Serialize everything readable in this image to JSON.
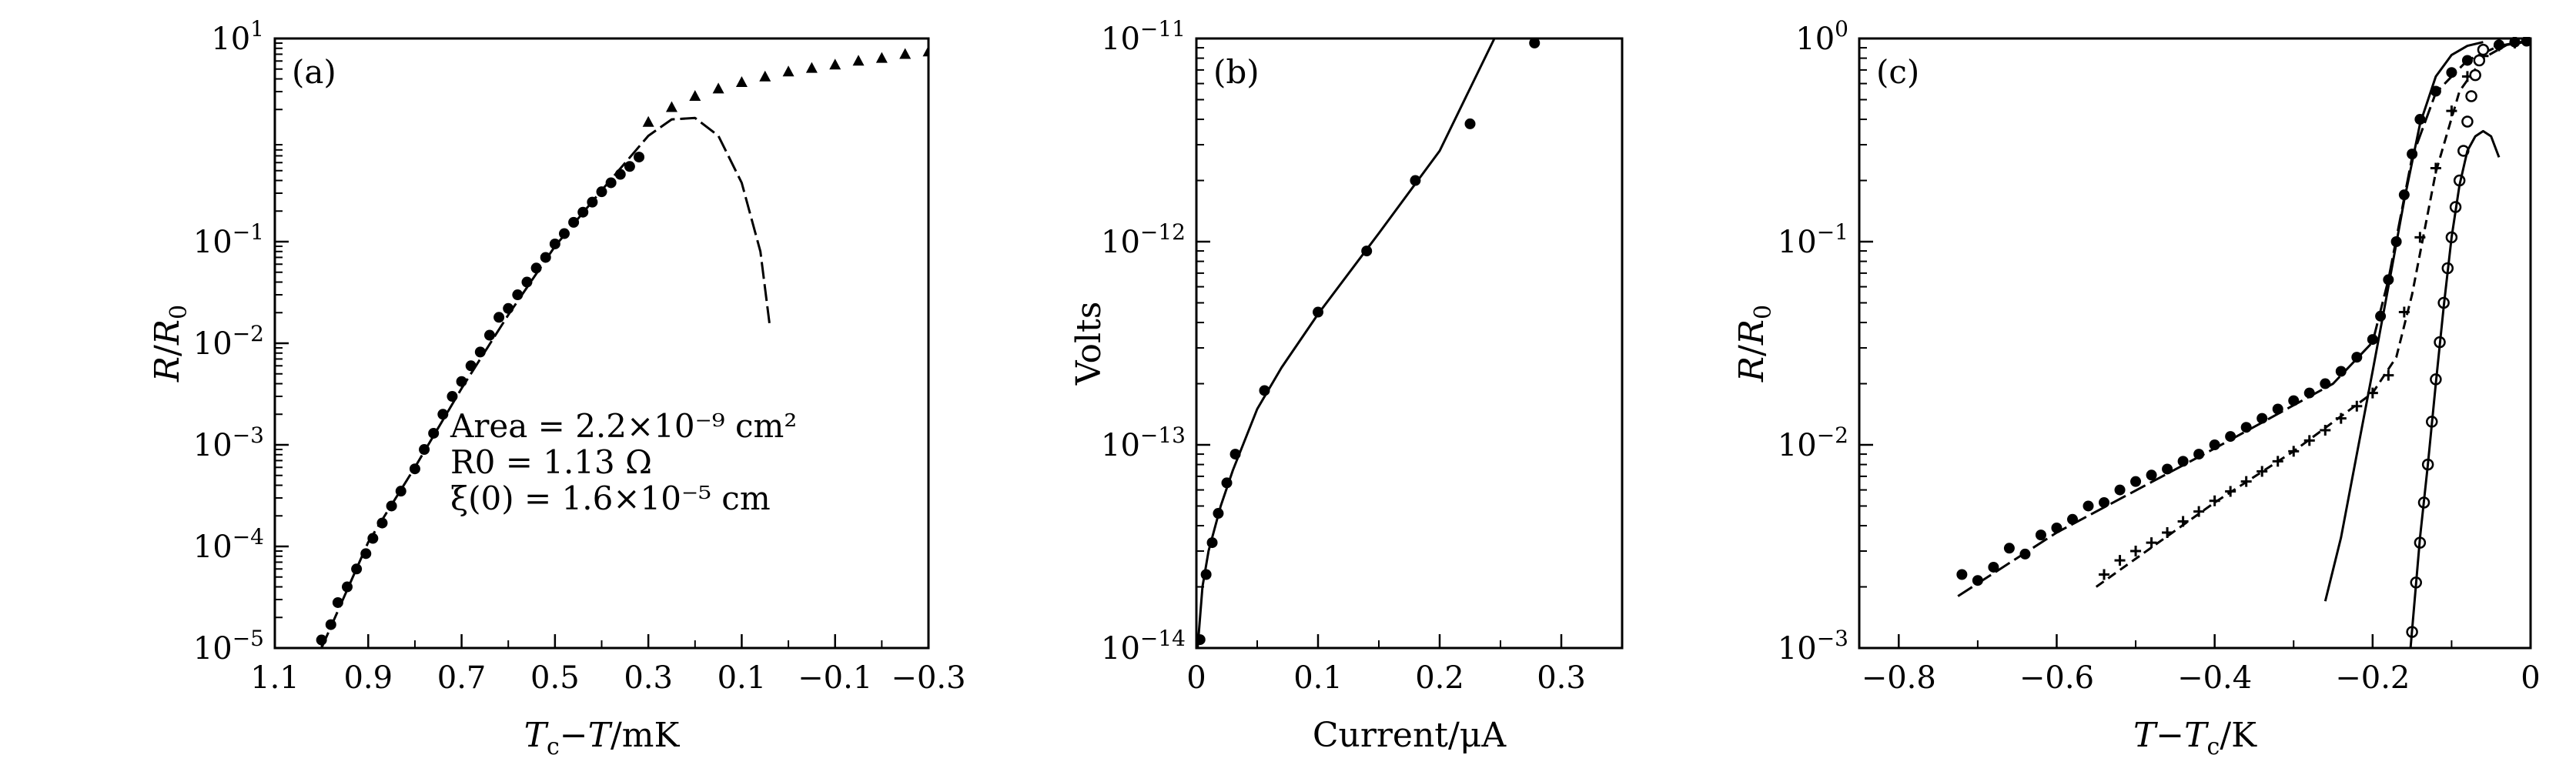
{
  "chart_data": [
    {
      "id": "a",
      "type": "scatter",
      "panel_label": "(a)",
      "xlabel": "Tc−T/mK",
      "ylabel": "R/R0",
      "xscale": "linear",
      "yscale": "log",
      "xlim": [
        1.1,
        -0.3
      ],
      "ylim": [
        1e-05,
        10
      ],
      "x_ticks": [
        1.1,
        0.9,
        0.7,
        0.5,
        0.3,
        0.1,
        -0.1,
        -0.3
      ],
      "x_tick_labels": [
        "1.1",
        "0.9",
        "0.7",
        "0.5",
        "0.3",
        "0.1",
        "−0.1",
        "−0.3"
      ],
      "y_ticks": [
        1e-05,
        0.0001,
        0.001,
        0.01,
        0.1,
        10
      ],
      "y_tick_labels": [
        {
          "base": "10",
          "exp": "−5"
        },
        {
          "base": "10",
          "exp": "−4"
        },
        {
          "base": "10",
          "exp": "−3"
        },
        {
          "base": "10",
          "exp": "−2"
        },
        {
          "base": "10",
          "exp": "−1"
        },
        {
          "base": "10",
          "exp": "1"
        }
      ],
      "annotations": [
        "Area = 2.2×10⁻⁹ cm²",
        "R0 = 1.13 Ω",
        "ξ(0) = 1.6×10⁻⁵ cm"
      ],
      "series": [
        {
          "style": "dots",
          "points": [
            [
              1.0,
              1.2e-05
            ],
            [
              0.98,
              1.7e-05
            ],
            [
              0.965,
              2.8e-05
            ],
            [
              0.945,
              4e-05
            ],
            [
              0.925,
              6e-05
            ],
            [
              0.905,
              8.5e-05
            ],
            [
              0.89,
              0.00012
            ],
            [
              0.87,
              0.00017
            ],
            [
              0.85,
              0.00025
            ],
            [
              0.83,
              0.00035
            ],
            [
              0.8,
              0.00058
            ],
            [
              0.78,
              0.0009
            ],
            [
              0.76,
              0.0013
            ],
            [
              0.74,
              0.002
            ],
            [
              0.72,
              0.003
            ],
            [
              0.7,
              0.0042
            ],
            [
              0.68,
              0.006
            ],
            [
              0.66,
              0.0082
            ],
            [
              0.64,
              0.012
            ],
            [
              0.62,
              0.018
            ],
            [
              0.6,
              0.022
            ],
            [
              0.58,
              0.03
            ],
            [
              0.56,
              0.04
            ],
            [
              0.54,
              0.055
            ],
            [
              0.52,
              0.07
            ],
            [
              0.5,
              0.095
            ],
            [
              0.48,
              0.12
            ],
            [
              0.46,
              0.155
            ],
            [
              0.44,
              0.195
            ],
            [
              0.42,
              0.245
            ],
            [
              0.4,
              0.31
            ],
            [
              0.38,
              0.38
            ],
            [
              0.36,
              0.46
            ],
            [
              0.34,
              0.55
            ],
            [
              0.32,
              0.68
            ]
          ]
        },
        {
          "style": "triangles",
          "points": [
            [
              0.3,
              1.5
            ],
            [
              0.25,
              2.1
            ],
            [
              0.2,
              2.7
            ],
            [
              0.15,
              3.2
            ],
            [
              0.1,
              3.7
            ],
            [
              0.05,
              4.2
            ],
            [
              0.0,
              4.7
            ],
            [
              -0.05,
              5.1
            ],
            [
              -0.1,
              5.5
            ],
            [
              -0.15,
              6.0
            ],
            [
              -0.2,
              6.4
            ],
            [
              -0.25,
              7.0
            ],
            [
              -0.3,
              7.4
            ]
          ]
        },
        {
          "style": "long-dash",
          "points": [
            [
              1.0,
              1e-05
            ],
            [
              0.9,
              0.00011
            ],
            [
              0.8,
              0.0006
            ],
            [
              0.7,
              0.0036
            ],
            [
              0.6,
              0.019
            ],
            [
              0.5,
              0.09
            ],
            [
              0.4,
              0.32
            ],
            [
              0.3,
              1.1
            ],
            [
              0.25,
              1.6
            ],
            [
              0.2,
              1.65
            ],
            [
              0.15,
              1.1
            ],
            [
              0.1,
              0.38
            ],
            [
              0.06,
              0.08
            ],
            [
              0.04,
              0.015
            ]
          ]
        }
      ]
    },
    {
      "id": "b",
      "type": "scatter",
      "panel_label": "(b)",
      "xlabel": "Current/μA",
      "ylabel": "Volts",
      "xscale": "linear",
      "yscale": "log",
      "xlim": [
        0,
        0.35
      ],
      "ylim": [
        1e-14,
        1e-11
      ],
      "x_ticks": [
        0,
        0.1,
        0.2,
        0.3
      ],
      "x_tick_labels": [
        "0",
        "0.1",
        "0.2",
        "0.3"
      ],
      "y_ticks": [
        1e-14,
        1e-13,
        1e-12,
        1e-11
      ],
      "y_tick_labels": [
        {
          "base": "10",
          "exp": "−14"
        },
        {
          "base": "10",
          "exp": "−13"
        },
        {
          "base": "10",
          "exp": "−12"
        },
        {
          "base": "10",
          "exp": "−11"
        }
      ],
      "series": [
        {
          "style": "dots",
          "points": [
            [
              0.003,
              1.1e-14
            ],
            [
              0.008,
              2.3e-14
            ],
            [
              0.013,
              3.3e-14
            ],
            [
              0.018,
              4.6e-14
            ],
            [
              0.025,
              6.5e-14
            ],
            [
              0.032,
              9e-14
            ],
            [
              0.056,
              1.85e-13
            ],
            [
              0.1,
              4.5e-13
            ],
            [
              0.14,
              9e-13
            ],
            [
              0.18,
              2e-12
            ],
            [
              0.225,
              3.8e-12
            ],
            [
              0.278,
              9.5e-12
            ]
          ]
        },
        {
          "style": "solid",
          "points": [
            [
              0.001,
              1e-14
            ],
            [
              0.005,
              2e-14
            ],
            [
              0.01,
              3e-14
            ],
            [
              0.02,
              5e-14
            ],
            [
              0.03,
              7.5e-14
            ],
            [
              0.05,
              1.5e-13
            ],
            [
              0.07,
              2.4e-13
            ],
            [
              0.1,
              4.4e-13
            ],
            [
              0.15,
              1.1e-12
            ],
            [
              0.2,
              2.8e-12
            ],
            [
              0.245,
              1e-11
            ]
          ]
        }
      ]
    },
    {
      "id": "c",
      "type": "scatter",
      "panel_label": "(c)",
      "xlabel": "T−Tc/K",
      "ylabel": "R/R0",
      "xscale": "linear",
      "yscale": "log",
      "xlim": [
        -0.85,
        0
      ],
      "ylim": [
        0.001,
        1
      ],
      "x_ticks": [
        -0.8,
        -0.6,
        -0.4,
        -0.2,
        0
      ],
      "x_tick_labels": [
        "−0.8",
        "−0.6",
        "−0.4",
        "−0.2",
        "0"
      ],
      "y_ticks": [
        0.001,
        0.01,
        0.1,
        1
      ],
      "y_tick_labels": [
        {
          "base": "10",
          "exp": "−3"
        },
        {
          "base": "10",
          "exp": "−2"
        },
        {
          "base": "10",
          "exp": "−1"
        },
        {
          "base": "10",
          "exp": "0"
        }
      ],
      "series": [
        {
          "style": "dots",
          "points": [
            [
              -0.72,
              0.0023
            ],
            [
              -0.7,
              0.00215
            ],
            [
              -0.68,
              0.0025
            ],
            [
              -0.66,
              0.0031
            ],
            [
              -0.64,
              0.0029
            ],
            [
              -0.62,
              0.0036
            ],
            [
              -0.6,
              0.0039
            ],
            [
              -0.58,
              0.0043
            ],
            [
              -0.56,
              0.005
            ],
            [
              -0.54,
              0.0052
            ],
            [
              -0.52,
              0.006
            ],
            [
              -0.5,
              0.0066
            ],
            [
              -0.48,
              0.0071
            ],
            [
              -0.46,
              0.0076
            ],
            [
              -0.44,
              0.0083
            ],
            [
              -0.42,
              0.009
            ],
            [
              -0.4,
              0.01
            ],
            [
              -0.38,
              0.011
            ],
            [
              -0.36,
              0.0122
            ],
            [
              -0.34,
              0.0135
            ],
            [
              -0.32,
              0.015
            ],
            [
              -0.3,
              0.0165
            ],
            [
              -0.28,
              0.018
            ],
            [
              -0.26,
              0.02
            ],
            [
              -0.24,
              0.023
            ],
            [
              -0.22,
              0.027
            ],
            [
              -0.2,
              0.033
            ],
            [
              -0.19,
              0.043
            ],
            [
              -0.18,
              0.065
            ],
            [
              -0.17,
              0.1
            ],
            [
              -0.16,
              0.17
            ],
            [
              -0.15,
              0.27
            ],
            [
              -0.14,
              0.4
            ],
            [
              -0.12,
              0.55
            ],
            [
              -0.1,
              0.68
            ],
            [
              -0.08,
              0.78
            ],
            [
              -0.06,
              0.88
            ],
            [
              -0.04,
              0.93
            ],
            [
              -0.02,
              0.96
            ],
            [
              -0.005,
              0.97
            ]
          ]
        },
        {
          "style": "long-dash",
          "points": [
            [
              -0.725,
              0.0018
            ],
            [
              -0.6,
              0.0037
            ],
            [
              -0.4,
              0.0096
            ],
            [
              -0.25,
              0.02
            ],
            [
              -0.2,
              0.032
            ],
            [
              -0.18,
              0.065
            ],
            [
              -0.15,
              0.26
            ],
            [
              -0.12,
              0.54
            ],
            [
              -0.08,
              0.78
            ],
            [
              -0.04,
              0.92
            ],
            [
              0,
              0.98
            ]
          ]
        },
        {
          "style": "crosses",
          "points": [
            [
              -0.54,
              0.0023
            ],
            [
              -0.52,
              0.0027
            ],
            [
              -0.5,
              0.003
            ],
            [
              -0.48,
              0.0033
            ],
            [
              -0.46,
              0.0037
            ],
            [
              -0.44,
              0.0042
            ],
            [
              -0.42,
              0.0047
            ],
            [
              -0.4,
              0.0053
            ],
            [
              -0.38,
              0.0059
            ],
            [
              -0.36,
              0.0066
            ],
            [
              -0.34,
              0.0074
            ],
            [
              -0.32,
              0.0083
            ],
            [
              -0.3,
              0.0093
            ],
            [
              -0.28,
              0.0105
            ],
            [
              -0.26,
              0.0118
            ],
            [
              -0.24,
              0.0135
            ],
            [
              -0.22,
              0.0155
            ],
            [
              -0.2,
              0.018
            ],
            [
              -0.18,
              0.022
            ],
            [
              -0.16,
              0.045
            ],
            [
              -0.14,
              0.105
            ],
            [
              -0.12,
              0.23
            ],
            [
              -0.1,
              0.44
            ],
            [
              -0.08,
              0.65
            ],
            [
              -0.06,
              0.82
            ],
            [
              -0.04,
              0.92
            ],
            [
              -0.02,
              0.95
            ]
          ]
        },
        {
          "style": "short-dash",
          "points": [
            [
              -0.55,
              0.002
            ],
            [
              -0.4,
              0.0052
            ],
            [
              -0.3,
              0.0093
            ],
            [
              -0.2,
              0.018
            ],
            [
              -0.17,
              0.027
            ],
            [
              -0.15,
              0.055
            ],
            [
              -0.12,
              0.22
            ],
            [
              -0.09,
              0.55
            ],
            [
              -0.06,
              0.8
            ],
            [
              -0.03,
              0.93
            ],
            [
              0,
              0.97
            ]
          ]
        },
        {
          "style": "solid",
          "points": [
            [
              -0.26,
              0.0017
            ],
            [
              -0.24,
              0.0035
            ],
            [
              -0.22,
              0.009
            ],
            [
              -0.2,
              0.023
            ],
            [
              -0.18,
              0.06
            ],
            [
              -0.16,
              0.16
            ],
            [
              -0.14,
              0.38
            ],
            [
              -0.12,
              0.65
            ],
            [
              -0.1,
              0.83
            ],
            [
              -0.08,
              0.92
            ],
            [
              -0.06,
              0.96
            ]
          ]
        },
        {
          "style": "circles",
          "points": [
            [
              -0.15,
              0.0012
            ],
            [
              -0.145,
              0.0021
            ],
            [
              -0.14,
              0.0033
            ],
            [
              -0.135,
              0.0052
            ],
            [
              -0.13,
              0.008
            ],
            [
              -0.125,
              0.013
            ],
            [
              -0.12,
              0.021
            ],
            [
              -0.115,
              0.032
            ],
            [
              -0.11,
              0.05
            ],
            [
              -0.105,
              0.074
            ],
            [
              -0.1,
              0.105
            ],
            [
              -0.095,
              0.148
            ],
            [
              -0.09,
              0.2
            ],
            [
              -0.085,
              0.28
            ],
            [
              -0.08,
              0.39
            ],
            [
              -0.075,
              0.52
            ],
            [
              -0.07,
              0.66
            ],
            [
              -0.065,
              0.78
            ],
            [
              -0.06,
              0.88
            ]
          ]
        },
        {
          "style": "solid",
          "points": [
            [
              -0.152,
              0.001
            ],
            [
              -0.14,
              0.0035
            ],
            [
              -0.13,
              0.008
            ],
            [
              -0.12,
              0.02
            ],
            [
              -0.11,
              0.048
            ],
            [
              -0.1,
              0.105
            ],
            [
              -0.09,
              0.19
            ],
            [
              -0.08,
              0.28
            ],
            [
              -0.07,
              0.33
            ],
            [
              -0.06,
              0.35
            ],
            [
              -0.05,
              0.33
            ],
            [
              -0.04,
              0.26
            ]
          ]
        }
      ]
    }
  ]
}
